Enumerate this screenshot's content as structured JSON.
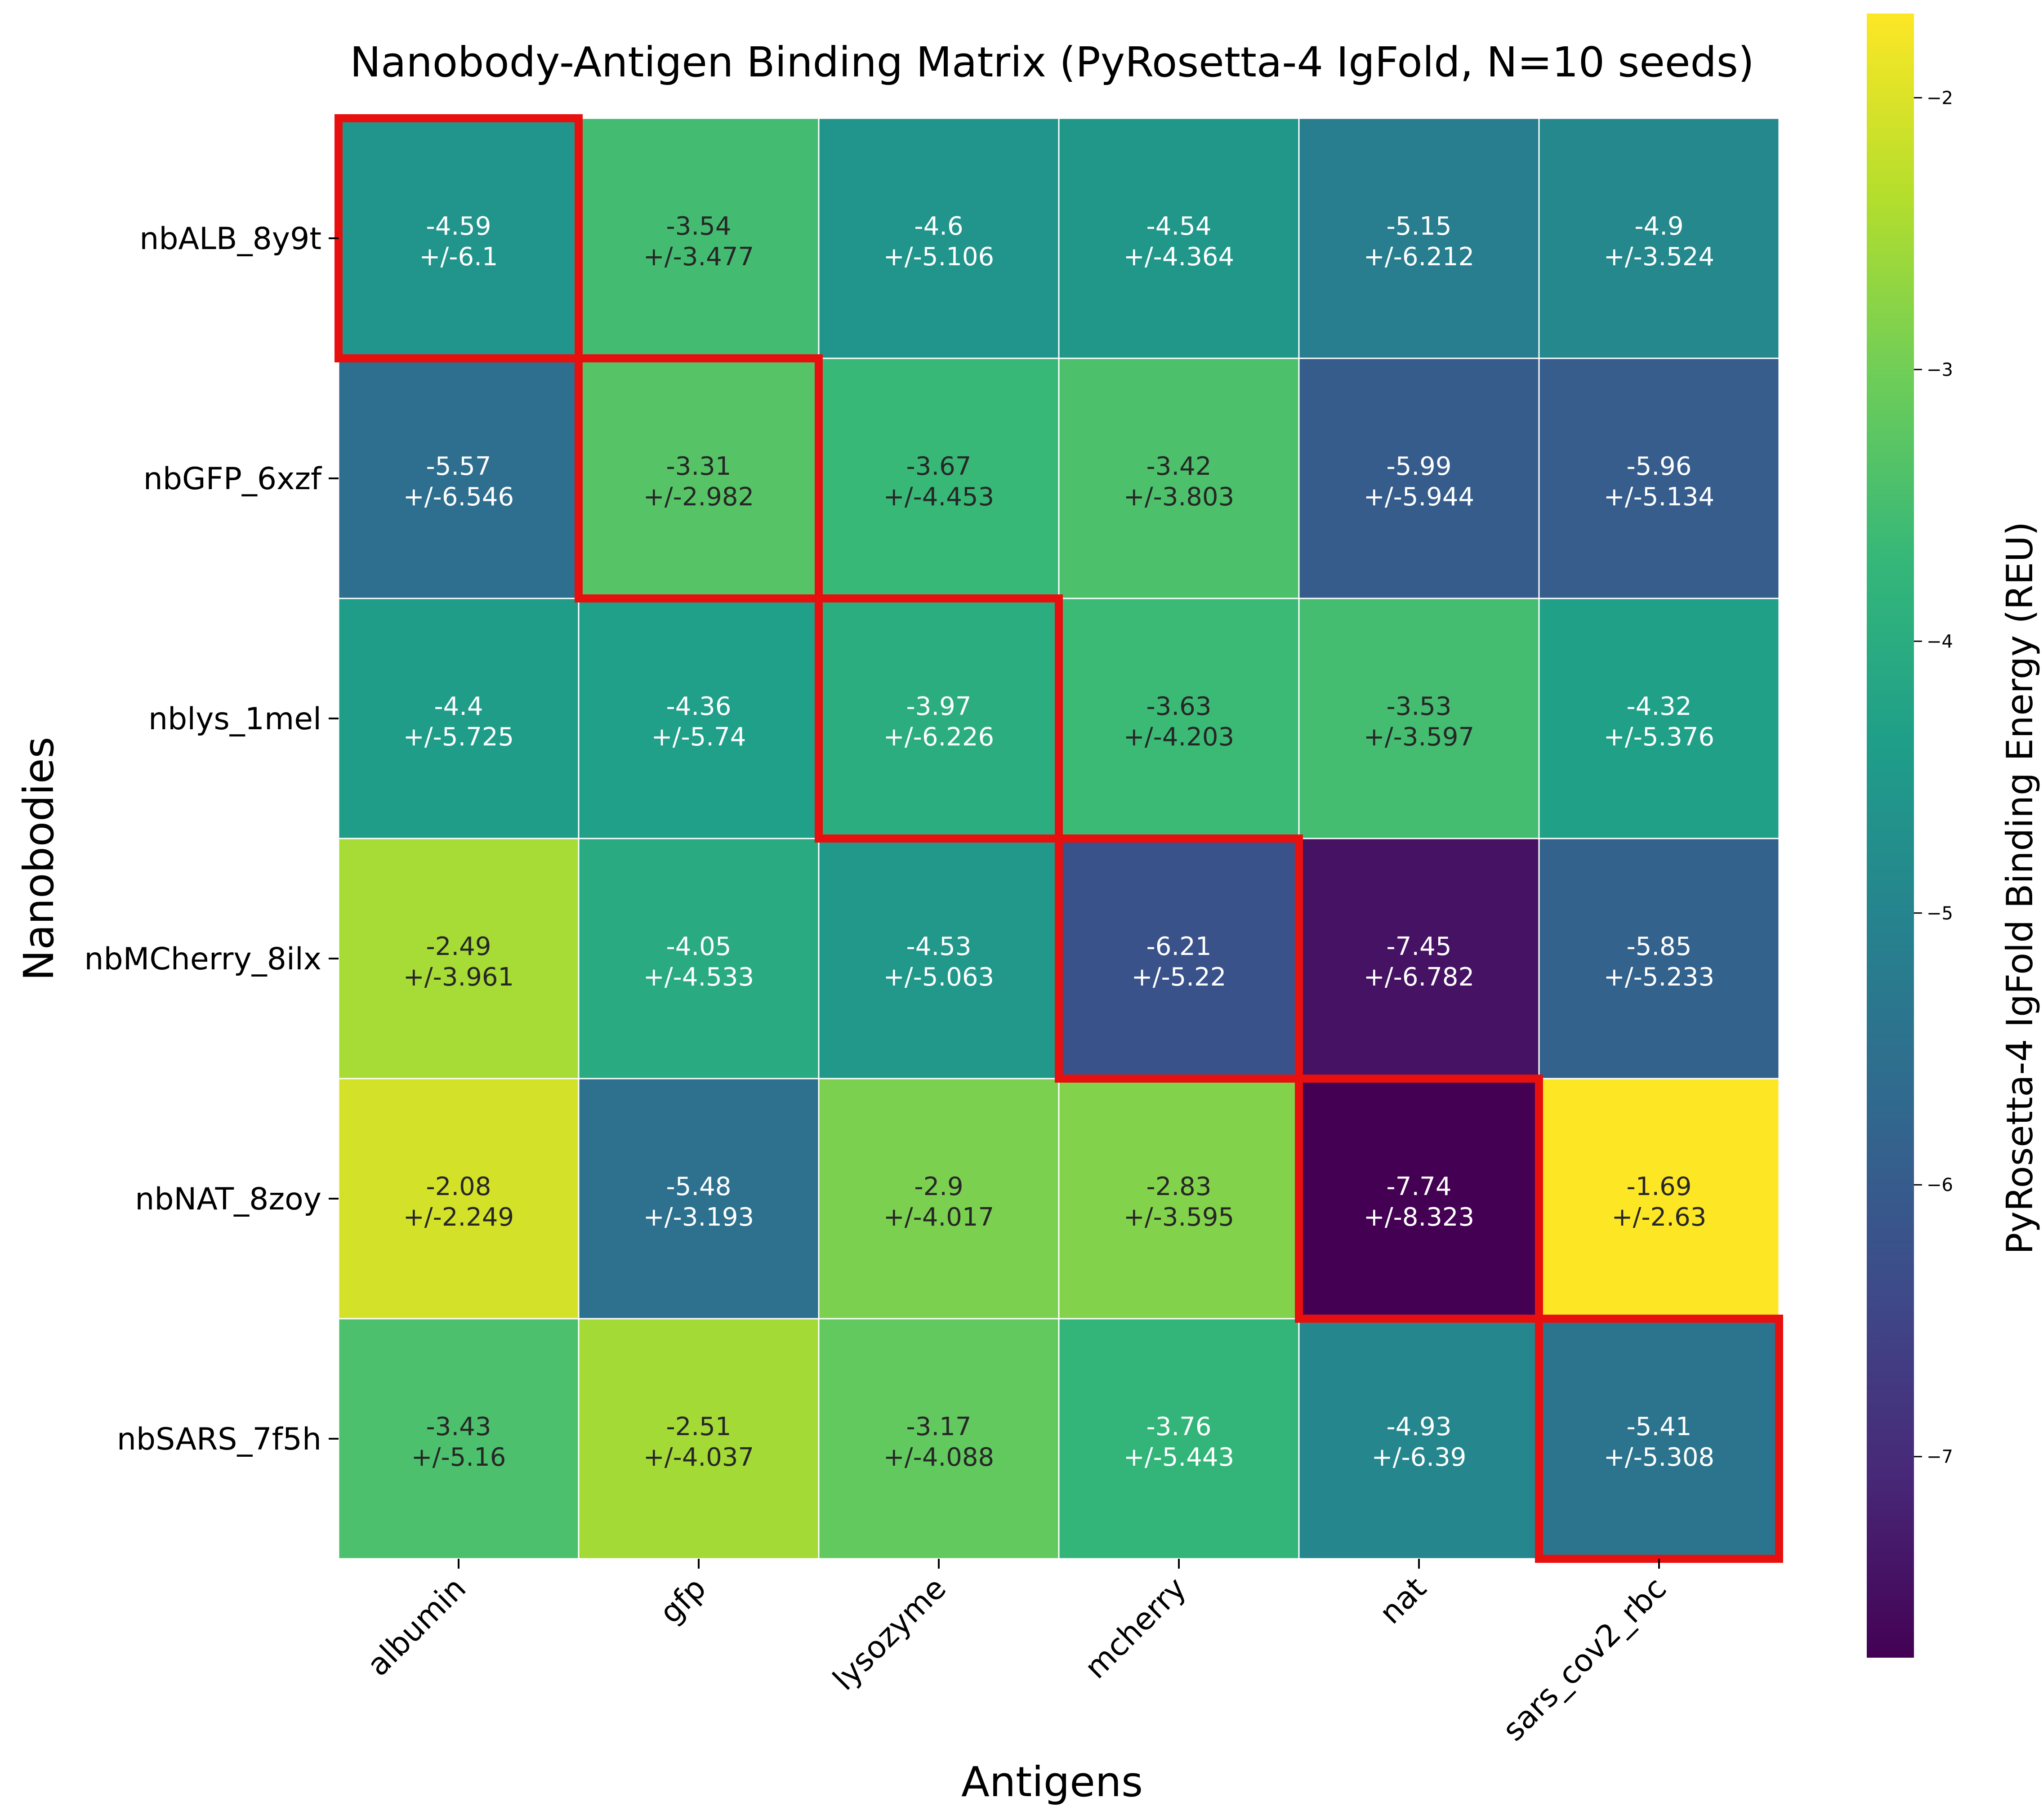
{
  "chart_data": {
    "type": "heatmap",
    "title": "Nanobody-Antigen Binding Matrix (PyRosetta-4 IgFold, N=10 seeds)",
    "xlabel": "Antigens",
    "ylabel": "Nanobodies",
    "colorbar_label": "PyRosetta-4 IgFold Binding Energy (REU)",
    "colormap": "viridis",
    "color_range": [
      -7.74,
      -1.69
    ],
    "colorbar_ticks": [
      -2,
      -3,
      -4,
      -5,
      -6,
      -7
    ],
    "colorbar_tick_labels": [
      "−2",
      "−3",
      "−4",
      "−5",
      "−6",
      "−7"
    ],
    "x_categories": [
      "albumin",
      "gfp",
      "lysozyme",
      "mcherry",
      "nat",
      "sars_cov2_rbc"
    ],
    "y_categories": [
      "nbALB_8y9t",
      "nbGFP_6xzf",
      "nblys_1mel",
      "nbMCherry_8ilx",
      "nbNAT_8zoy",
      "nbSARS_7f5h"
    ],
    "values": [
      [
        -4.59,
        -3.54,
        -4.6,
        -4.54,
        -5.15,
        -4.9
      ],
      [
        -5.57,
        -3.31,
        -3.67,
        -3.42,
        -5.99,
        -5.96
      ],
      [
        -4.4,
        -4.36,
        -3.97,
        -3.63,
        -3.53,
        -4.32
      ],
      [
        -2.49,
        -4.05,
        -4.53,
        -6.21,
        -7.45,
        -5.85
      ],
      [
        -2.08,
        -5.48,
        -2.9,
        -2.83,
        -7.74,
        -1.69
      ],
      [
        -3.43,
        -2.51,
        -3.17,
        -3.76,
        -4.93,
        -5.41
      ]
    ],
    "value_labels": [
      [
        "-4.59",
        "-3.54",
        "-4.6",
        "-4.54",
        "-5.15",
        "-4.9"
      ],
      [
        "-5.57",
        "-3.31",
        "-3.67",
        "-3.42",
        "-5.99",
        "-5.96"
      ],
      [
        "-4.4",
        "-4.36",
        "-3.97",
        "-3.63",
        "-3.53",
        "-4.32"
      ],
      [
        "-2.49",
        "-4.05",
        "-4.53",
        "-6.21",
        "-7.45",
        "-5.85"
      ],
      [
        "-2.08",
        "-5.48",
        "-2.9",
        "-2.83",
        "-7.74",
        "-1.69"
      ],
      [
        "-3.43",
        "-2.51",
        "-3.17",
        "-3.76",
        "-4.93",
        "-5.41"
      ]
    ],
    "std_labels": [
      [
        "+/-6.1",
        "+/-3.477",
        "+/-5.106",
        "+/-4.364",
        "+/-6.212",
        "+/-3.524"
      ],
      [
        "+/-6.546",
        "+/-2.982",
        "+/-4.453",
        "+/-3.803",
        "+/-5.944",
        "+/-5.134"
      ],
      [
        "+/-5.725",
        "+/-5.74",
        "+/-6.226",
        "+/-4.203",
        "+/-3.597",
        "+/-5.376"
      ],
      [
        "+/-3.961",
        "+/-4.533",
        "+/-5.063",
        "+/-5.22",
        "+/-6.782",
        "+/-5.233"
      ],
      [
        "+/-2.249",
        "+/-3.193",
        "+/-4.017",
        "+/-3.595",
        "+/-8.323",
        "+/-2.63"
      ],
      [
        "+/-5.16",
        "+/-4.037",
        "+/-4.088",
        "+/-5.443",
        "+/-6.39",
        "+/-5.308"
      ]
    ],
    "highlighted_cells": [
      [
        0,
        0
      ],
      [
        1,
        1
      ],
      [
        2,
        2
      ],
      [
        3,
        3
      ],
      [
        4,
        4
      ],
      [
        5,
        5
      ]
    ],
    "highlight_color": "#e8100f"
  }
}
